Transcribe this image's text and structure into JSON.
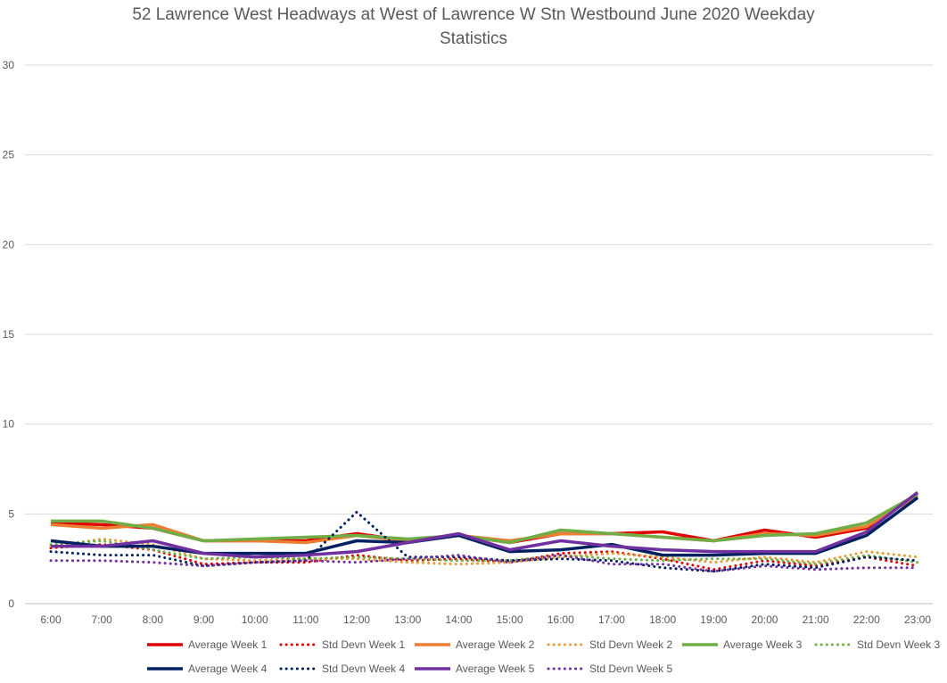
{
  "chart_data": {
    "type": "line",
    "title_line1": "52 Lawrence West Headways at West of Lawrence W Stn Westbound June 2020 Weekday",
    "title_line2": "Statistics",
    "xlabel": "",
    "ylabel": "",
    "ylim": [
      0,
      30
    ],
    "yticks": [
      0,
      5,
      10,
      15,
      20,
      25,
      30
    ],
    "grid": true,
    "legend_position": "bottom",
    "categories": [
      "6:00",
      "7:00",
      "8:00",
      "9:00",
      "10:00",
      "11:00",
      "12:00",
      "13:00",
      "14:00",
      "15:00",
      "16:00",
      "17:00",
      "18:00",
      "19:00",
      "20:00",
      "21:00",
      "22:00",
      "23:00"
    ],
    "series": [
      {
        "name": "Average Week 1",
        "color": "#e00000",
        "dash": "solid",
        "values": [
          4.5,
          4.4,
          4.2,
          3.5,
          3.5,
          3.5,
          3.9,
          3.5,
          3.8,
          3.4,
          3.9,
          3.9,
          4.0,
          3.5,
          4.1,
          3.7,
          4.2,
          6.1
        ]
      },
      {
        "name": "Std Devn Week 1",
        "color": "#e00000",
        "dash": "dotted",
        "values": [
          3.1,
          3.3,
          3.0,
          2.2,
          2.3,
          2.3,
          2.7,
          2.4,
          2.5,
          2.3,
          2.8,
          2.9,
          2.5,
          1.9,
          2.4,
          2.1,
          2.6,
          2.1
        ]
      },
      {
        "name": "Average Week 2",
        "color": "#ed7d31",
        "dash": "solid",
        "values": [
          4.4,
          4.2,
          4.4,
          3.5,
          3.5,
          3.4,
          3.8,
          3.5,
          3.8,
          3.5,
          3.9,
          3.9,
          3.7,
          3.5,
          3.9,
          3.8,
          4.3,
          6.0
        ]
      },
      {
        "name": "Std Devn Week 2",
        "color": "#e69b35",
        "dash": "dotted",
        "values": [
          3.2,
          3.6,
          3.3,
          2.5,
          2.4,
          2.5,
          2.5,
          2.3,
          2.2,
          2.3,
          2.6,
          2.8,
          2.6,
          2.3,
          2.6,
          2.3,
          2.9,
          2.6
        ]
      },
      {
        "name": "Average Week 3",
        "color": "#70ad47",
        "dash": "solid",
        "values": [
          4.6,
          4.6,
          4.2,
          3.5,
          3.6,
          3.7,
          3.8,
          3.6,
          3.8,
          3.4,
          4.1,
          3.9,
          3.7,
          3.5,
          3.8,
          3.9,
          4.5,
          6.1
        ]
      },
      {
        "name": "Std Devn Week 3",
        "color": "#70ad47",
        "dash": "dotted",
        "values": [
          3.3,
          3.5,
          3.0,
          2.5,
          2.6,
          2.5,
          2.6,
          2.5,
          2.4,
          2.4,
          2.7,
          2.5,
          2.4,
          2.5,
          2.5,
          2.2,
          2.7,
          2.3
        ]
      },
      {
        "name": "Average Week 4",
        "color": "#002060",
        "dash": "solid",
        "values": [
          3.5,
          3.2,
          3.2,
          2.8,
          2.8,
          2.8,
          3.5,
          3.4,
          3.8,
          2.9,
          3.0,
          3.3,
          2.7,
          2.7,
          2.8,
          2.8,
          3.8,
          5.9
        ]
      },
      {
        "name": "Std Devn Week 4",
        "color": "#002060",
        "dash": "dotted",
        "values": [
          2.9,
          2.7,
          2.7,
          2.1,
          2.3,
          2.4,
          5.1,
          2.6,
          2.6,
          2.4,
          2.5,
          2.4,
          2.0,
          1.8,
          2.2,
          2.0,
          2.6,
          2.4
        ]
      },
      {
        "name": "Average Week 5",
        "color": "#7030a0",
        "dash": "solid",
        "values": [
          3.2,
          3.2,
          3.5,
          2.8,
          2.6,
          2.7,
          2.9,
          3.4,
          3.9,
          3.0,
          3.5,
          3.2,
          3.0,
          2.9,
          2.9,
          2.9,
          4.0,
          6.2
        ]
      },
      {
        "name": "Std Devn Week 5",
        "color": "#7030a0",
        "dash": "dotted",
        "values": [
          2.4,
          2.4,
          2.3,
          2.1,
          2.3,
          2.4,
          2.3,
          2.5,
          2.7,
          2.3,
          2.7,
          2.2,
          2.2,
          1.8,
          2.1,
          1.9,
          2.0,
          2.0
        ]
      }
    ]
  }
}
